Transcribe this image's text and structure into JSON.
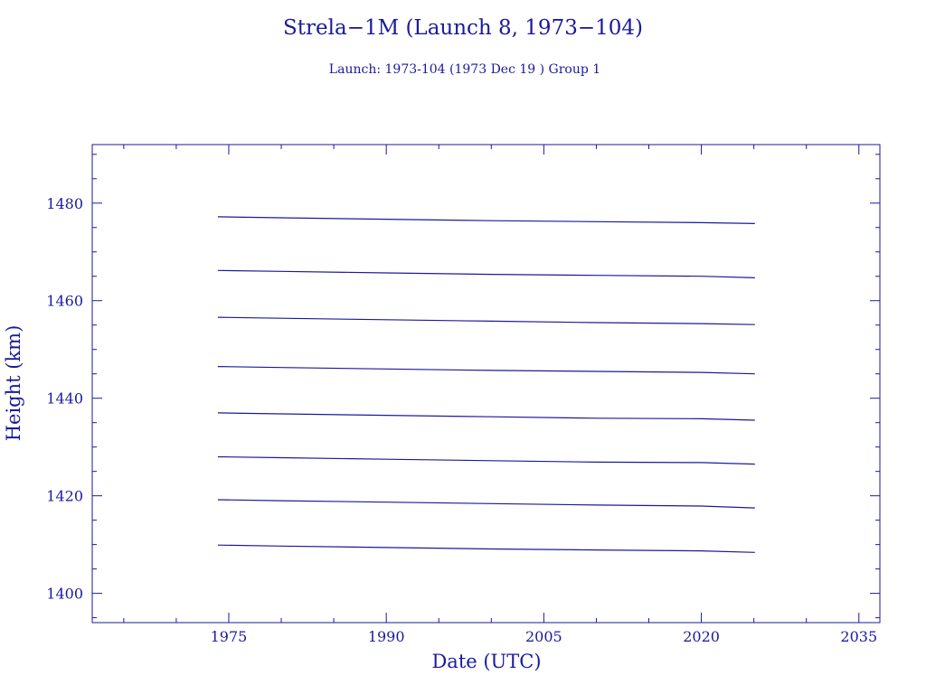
{
  "chart_data": {
    "type": "line",
    "title": "Strela−1M (Launch 8, 1973−104)",
    "subtitle": "Launch: 1973-104  (1973 Dec 19 )  Group 1",
    "xlabel": "Date (UTC)",
    "ylabel": "Height (km)",
    "xlim": [
      1962,
      2037
    ],
    "ylim": [
      1394,
      1492
    ],
    "xticks": [
      1975,
      1990,
      2005,
      2020,
      2035
    ],
    "yticks": [
      1400,
      1420,
      1440,
      1460,
      1480
    ],
    "x_minor_step": 5,
    "y_minor_step": 5,
    "grid": false,
    "color": "#1a1a9c",
    "series": [
      {
        "x": [
          1973.96,
          1980,
          1990,
          2000,
          2010,
          2020,
          2025.1
        ],
        "y": [
          1477.2,
          1477.0,
          1476.7,
          1476.4,
          1476.2,
          1476.0,
          1475.8
        ]
      },
      {
        "x": [
          1973.96,
          1980,
          1990,
          2000,
          2010,
          2020,
          2025.1
        ],
        "y": [
          1466.2,
          1466.0,
          1465.7,
          1465.4,
          1465.2,
          1465.0,
          1464.7
        ]
      },
      {
        "x": [
          1973.96,
          1980,
          1990,
          2000,
          2010,
          2020,
          2025.1
        ],
        "y": [
          1456.6,
          1456.4,
          1456.1,
          1455.8,
          1455.5,
          1455.3,
          1455.1
        ]
      },
      {
        "x": [
          1973.96,
          1980,
          1990,
          2000,
          2010,
          2020,
          2025.1
        ],
        "y": [
          1446.5,
          1446.3,
          1446.0,
          1445.7,
          1445.5,
          1445.3,
          1445.0
        ]
      },
      {
        "x": [
          1973.96,
          1980,
          1990,
          2000,
          2010,
          2020,
          2025.1
        ],
        "y": [
          1437.0,
          1436.8,
          1436.5,
          1436.2,
          1435.9,
          1435.8,
          1435.5
        ]
      },
      {
        "x": [
          1973.96,
          1980,
          1990,
          2000,
          2010,
          2020,
          2025.1
        ],
        "y": [
          1428.0,
          1427.8,
          1427.5,
          1427.2,
          1426.9,
          1426.8,
          1426.5
        ]
      },
      {
        "x": [
          1973.96,
          1980,
          1990,
          2000,
          2010,
          2020,
          2025.1
        ],
        "y": [
          1419.2,
          1419.0,
          1418.7,
          1418.4,
          1418.1,
          1417.9,
          1417.5
        ]
      },
      {
        "x": [
          1973.96,
          1980,
          1990,
          2000,
          2010,
          2020,
          2025.1
        ],
        "y": [
          1409.9,
          1409.7,
          1409.4,
          1409.1,
          1408.9,
          1408.7,
          1408.4
        ]
      }
    ]
  }
}
